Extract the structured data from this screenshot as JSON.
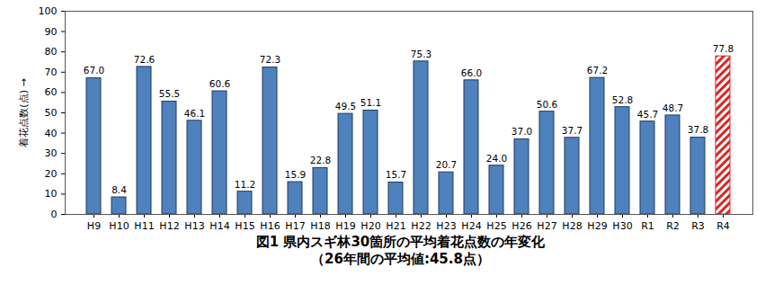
{
  "chart_data": {
    "type": "bar",
    "title": "図1  県内スギ林30箇所の平均着花点数の年変化",
    "subtitle": "（26年間の平均値:45.8点）",
    "y_label": "着花点数(点)",
    "categories": [
      "H9",
      "H10",
      "H11",
      "H12",
      "H13",
      "H14",
      "H15",
      "H16",
      "H17",
      "H18",
      "H19",
      "H20",
      "H21",
      "H22",
      "H23",
      "H24",
      "H25",
      "H26",
      "H27",
      "H28",
      "H29",
      "H30",
      "R1",
      "R2",
      "R3",
      "R4"
    ],
    "values": [
      67.0,
      8.4,
      72.6,
      55.5,
      46.1,
      60.6,
      11.2,
      72.3,
      15.9,
      22.8,
      49.5,
      51.1,
      15.7,
      75.3,
      20.7,
      66.0,
      24.0,
      37.0,
      50.6,
      37.7,
      67.2,
      52.8,
      45.7,
      48.7,
      37.8,
      77.8
    ],
    "value_labels": [
      "67.0",
      "8.4",
      "72.6",
      "55.5",
      "46.1",
      "60.6",
      "11.2",
      "72.3",
      "15.9",
      "22.8",
      "49.5",
      "51.1",
      "15.7",
      "75.3",
      "20.7",
      "66.0",
      "24.0",
      "37.0",
      "50.6",
      "37.7",
      "67.2",
      "52.8",
      "45.7",
      "48.7",
      "37.8",
      "77.8"
    ],
    "color": "#4f81bd",
    "colors": [
      "#4f81bd",
      "#4f81bd",
      "#4f81bd",
      "#4f81bd",
      "#4f81bd",
      "#4f81bd",
      "#4f81bd",
      "#4f81bd",
      "#4f81bd",
      "#4f81bd",
      "#4f81bd",
      "#4f81bd",
      "#4f81bd",
      "#4f81bd",
      "#4f81bd",
      "#4f81bd",
      "#4f81bd",
      "#4f81bd",
      "#4f81bd",
      "#4f81bd",
      "#4f81bd",
      "#4f81bd",
      "#4f81bd",
      "#4f81bd",
      "#4f81bd",
      "#d62728"
    ],
    "ylim": [
      0,
      100
    ],
    "yticks": [
      0,
      10,
      20,
      30,
      40,
      50,
      60,
      70,
      80,
      90,
      100
    ],
    "grid": false,
    "data_labels": true
  }
}
